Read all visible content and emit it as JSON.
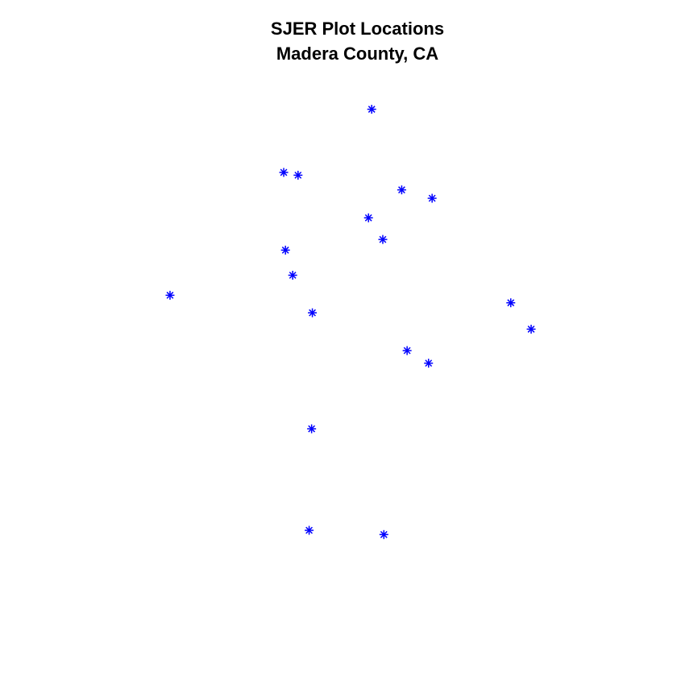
{
  "chart_data": {
    "type": "scatter",
    "title": "SJER Plot Locations",
    "subtitle": "Madera County, CA",
    "xlabel": "",
    "ylabel": "",
    "axes_visible": false,
    "grid": false,
    "legend": "none",
    "marker": "asterisk",
    "color": "#0000ff",
    "series": [
      {
        "values": [
          {
            "x": 0.5373,
            "y": 0.959
          },
          {
            "x": 0.3136,
            "y": 0.8282
          },
          {
            "x": 0.35,
            "y": 0.8224
          },
          {
            "x": 0.6136,
            "y": 0.792
          },
          {
            "x": 0.6909,
            "y": 0.7746
          },
          {
            "x": 0.5291,
            "y": 0.7341
          },
          {
            "x": 0.5655,
            "y": 0.6893
          },
          {
            "x": 0.318,
            "y": 0.6672
          },
          {
            "x": 0.3364,
            "y": 0.6152
          },
          {
            "x": 0.0245,
            "y": 0.5737
          },
          {
            "x": 0.8909,
            "y": 0.5581
          },
          {
            "x": 0.3864,
            "y": 0.5374
          },
          {
            "x": 0.9427,
            "y": 0.5035
          },
          {
            "x": 0.6273,
            "y": 0.4591
          },
          {
            "x": 0.6818,
            "y": 0.433
          },
          {
            "x": 0.3845,
            "y": 0.2971
          },
          {
            "x": 0.3782,
            "y": 0.0868
          },
          {
            "x": 0.5682,
            "y": 0.078
          }
        ]
      }
    ],
    "xlim": [
      0,
      1
    ],
    "ylim": [
      0,
      1
    ]
  }
}
